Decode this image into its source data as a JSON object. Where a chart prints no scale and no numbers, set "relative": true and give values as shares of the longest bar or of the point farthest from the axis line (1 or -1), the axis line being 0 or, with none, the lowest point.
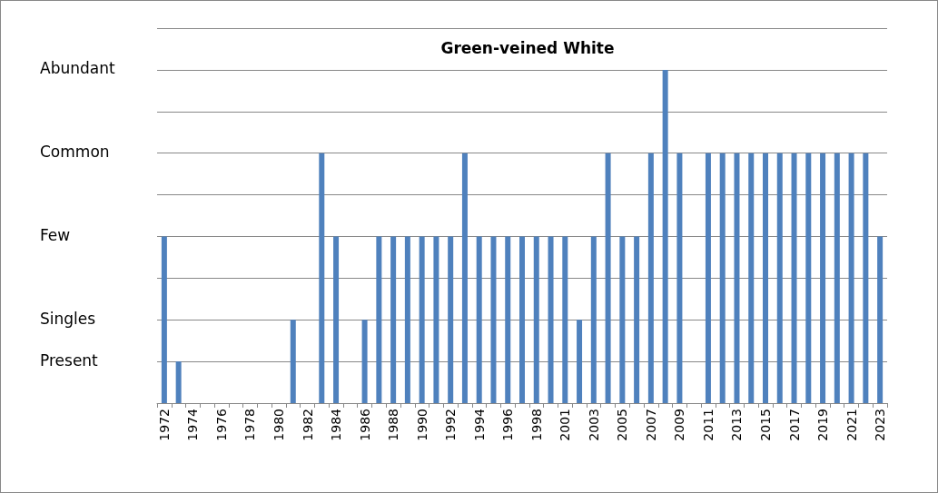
{
  "chart_data": {
    "type": "bar",
    "title": "Green-veined White",
    "categories": [
      "1972",
      null,
      "1974",
      null,
      "1976",
      null,
      "1978",
      null,
      "1980",
      null,
      "1982",
      null,
      "1984",
      null,
      "1986",
      null,
      "1988",
      null,
      "1990",
      null,
      "1992",
      null,
      "1994",
      null,
      "1996",
      null,
      "1998",
      null,
      "2001",
      null,
      "2003",
      null,
      "2005",
      null,
      "2007",
      null,
      "2009",
      null,
      "2011",
      null,
      "2013",
      null,
      "2015",
      null,
      "2017",
      null,
      "2019",
      null,
      "2021",
      null,
      "2023"
    ],
    "values": [
      0.5,
      0.125,
      0,
      0,
      0,
      0,
      0,
      0,
      0,
      0.25,
      0,
      0.75,
      0.5,
      0,
      0.25,
      0.5,
      0.5,
      0.5,
      0.5,
      0.5,
      0.5,
      0.75,
      0.5,
      0.5,
      0.5,
      0.5,
      0.5,
      0.5,
      0.5,
      0.25,
      0.5,
      0.75,
      0.5,
      0.5,
      0.75,
      1,
      0.75,
      0,
      0.75,
      0.75,
      0.75,
      0.75,
      0.75,
      0.75,
      0.75,
      0.75,
      0.75,
      0.75,
      0.75,
      0.75,
      0.5
    ],
    "color": "#4f81bd",
    "relative": true,
    "annotations": [
      "Present",
      "Singles",
      "Few",
      "Common",
      "Abundant"
    ],
    "grid": "y"
  }
}
